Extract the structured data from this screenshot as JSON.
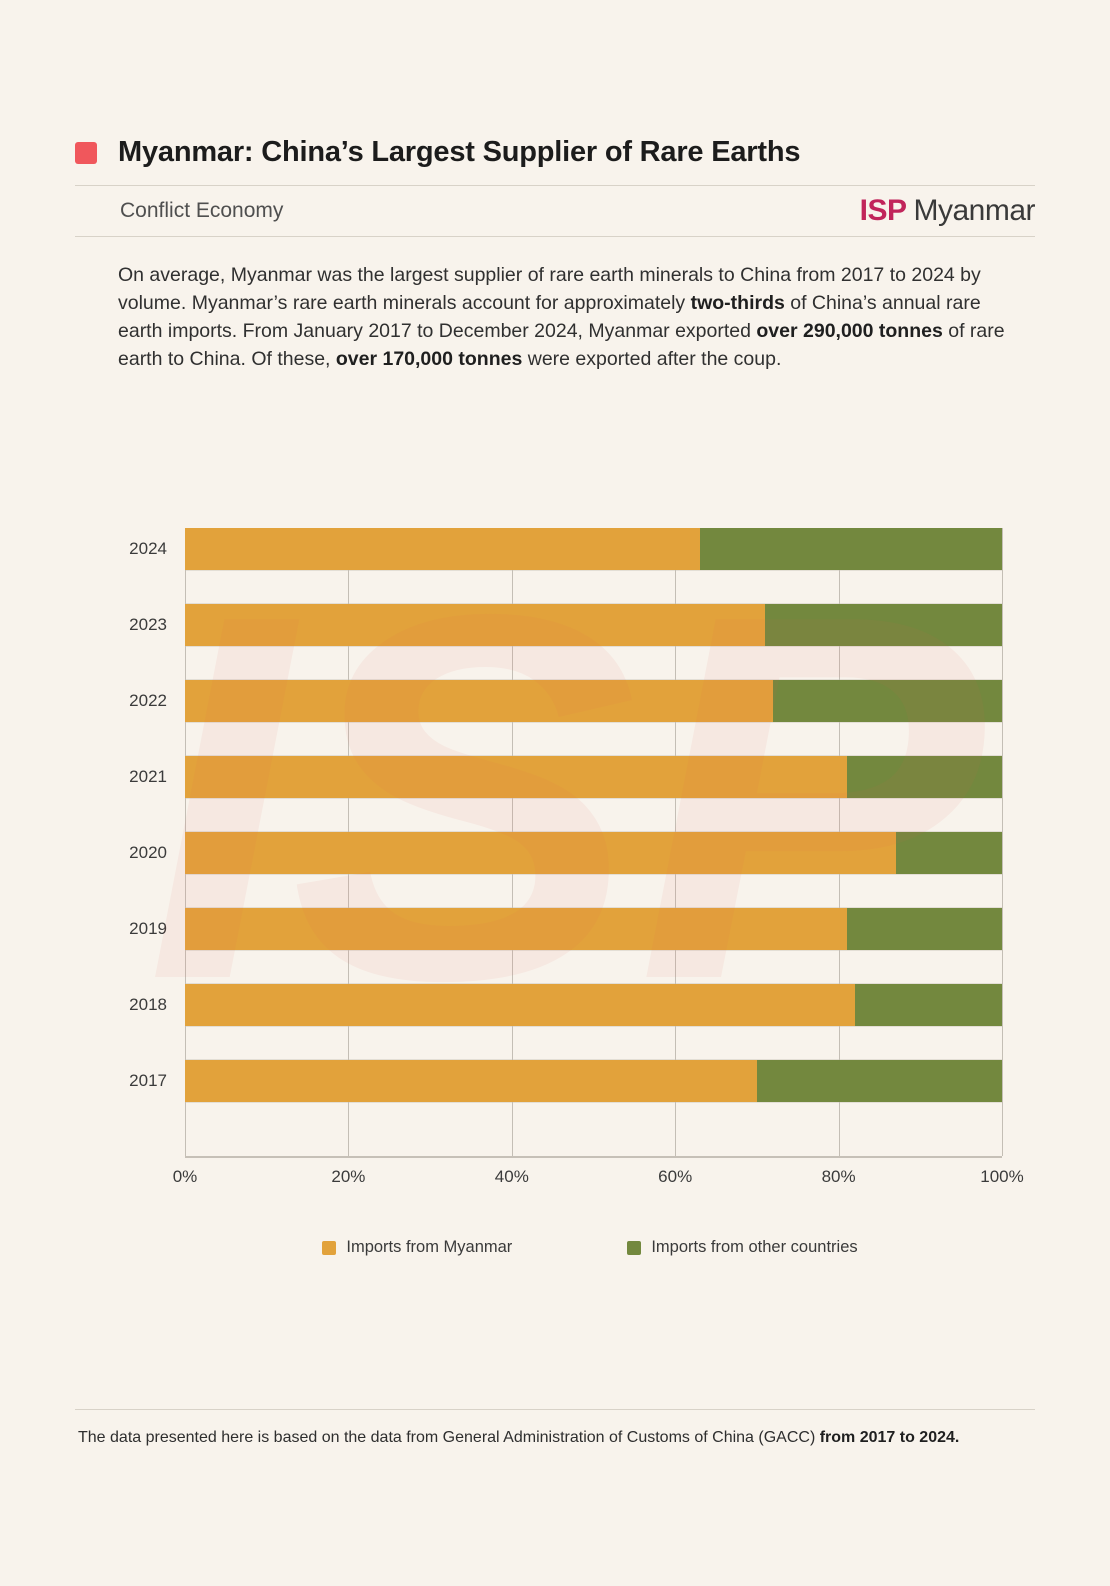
{
  "header": {
    "title": "Myanmar: China’s Largest Supplier of Rare Earths",
    "category": "Conflict Economy",
    "logo": {
      "isp": "ISP",
      "myanmar": "Myanmar"
    }
  },
  "intro": {
    "segments": [
      {
        "text": "On average, Myanmar was the largest supplier of rare earth minerals to China from 2017 to 2024 by volume. Myanmar’s rare earth minerals account for approximately ",
        "bold": false
      },
      {
        "text": "two-thirds",
        "bold": true
      },
      {
        "text": " of China’s annual rare earth imports. From January 2017 to December 2024, Myanmar exported ",
        "bold": false
      },
      {
        "text": "over 290,000 tonnes",
        "bold": true
      },
      {
        "text": " of rare earth to China. Of these, ",
        "bold": false
      },
      {
        "text": "over 170,000 tonnes",
        "bold": true
      },
      {
        "text": " were exported after the coup.",
        "bold": false
      }
    ]
  },
  "chart_data": {
    "type": "bar",
    "orientation": "horizontal",
    "stacked": true,
    "percent_stacked": true,
    "categories": [
      "2024",
      "2023",
      "2022",
      "2021",
      "2020",
      "2019",
      "2018",
      "2017"
    ],
    "series": [
      {
        "name": "Imports from Myanmar",
        "color": "#E2A23B",
        "values": [
          63,
          71,
          72,
          81,
          87,
          81,
          82,
          70
        ]
      },
      {
        "name": "Imports from other countries",
        "color": "#73883E",
        "values": [
          37,
          29,
          28,
          19,
          13,
          19,
          18,
          30
        ]
      }
    ],
    "x_ticks": [
      "0%",
      "20%",
      "40%",
      "60%",
      "80%",
      "100%"
    ],
    "xlim": [
      0,
      100
    ],
    "grid": "vertical",
    "legend_position": "bottom"
  },
  "footer": {
    "segments": [
      {
        "text": "The data presented here is based on the data from General Administration of Customs of China (GACC) ",
        "bold": false
      },
      {
        "text": "from 2017 to 2024.",
        "bold": true
      }
    ]
  },
  "watermark": "ISP",
  "colors": {
    "page_background": "#F8F3EC",
    "title_bullet": "#F0575C",
    "logo_isp": "#C1255B",
    "bar_myanmar": "#E2A23B",
    "bar_other": "#73883E",
    "gridline": "#C4BEB5",
    "watermark_pink": "rgba(231,101,91,0.07)"
  }
}
